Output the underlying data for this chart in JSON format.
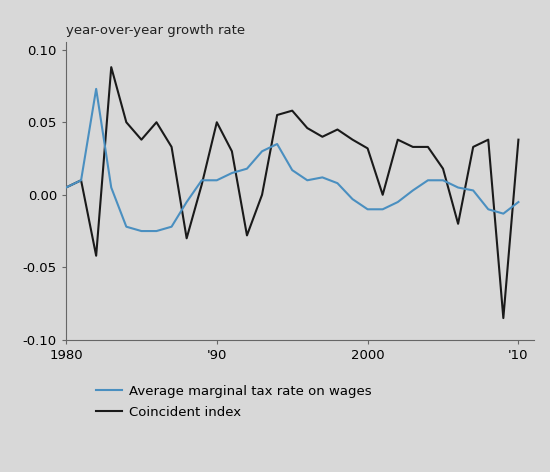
{
  "title": "year-over-year growth rate",
  "background_color": "#d8d8d8",
  "plot_bg_color": "#d8d8d8",
  "xlim": [
    1980,
    2011
  ],
  "ylim": [
    -0.1,
    0.105
  ],
  "yticks": [
    -0.1,
    -0.05,
    0.0,
    0.05,
    0.1
  ],
  "ytick_labels": [
    "-0.10",
    "-0.05",
    "0.00",
    "0.05",
    "0.10"
  ],
  "xtick_labels": [
    "1980",
    "'90",
    "2000",
    "'10"
  ],
  "xtick_positions": [
    1980,
    1990,
    2000,
    2010
  ],
  "blue_line_color": "#4a8fc0",
  "black_line_color": "#1a1a1a",
  "blue_label": "Average marginal tax rate on wages",
  "black_label": "Coincident index",
  "years": [
    1980,
    1981,
    1982,
    1983,
    1984,
    1985,
    1986,
    1987,
    1988,
    1989,
    1990,
    1991,
    1992,
    1993,
    1994,
    1995,
    1996,
    1997,
    1998,
    1999,
    2000,
    2001,
    2002,
    2003,
    2004,
    2005,
    2006,
    2007,
    2008,
    2009,
    2010
  ],
  "blue_values": [
    0.005,
    0.01,
    0.073,
    0.005,
    -0.022,
    -0.025,
    -0.025,
    -0.022,
    -0.005,
    0.01,
    0.01,
    0.015,
    0.018,
    0.03,
    0.035,
    0.017,
    0.01,
    0.012,
    0.008,
    -0.003,
    -0.01,
    -0.01,
    -0.005,
    0.003,
    0.01,
    0.01,
    0.005,
    0.003,
    -0.01,
    -0.013,
    -0.005
  ],
  "black_values": [
    0.005,
    0.01,
    -0.042,
    0.088,
    0.05,
    0.038,
    0.05,
    0.033,
    -0.03,
    0.007,
    0.05,
    0.03,
    -0.028,
    0.0,
    0.055,
    0.058,
    0.046,
    0.04,
    0.045,
    0.038,
    0.032,
    0.0,
    0.038,
    0.033,
    0.033,
    0.018,
    -0.02,
    0.033,
    0.038,
    -0.085,
    0.038
  ]
}
